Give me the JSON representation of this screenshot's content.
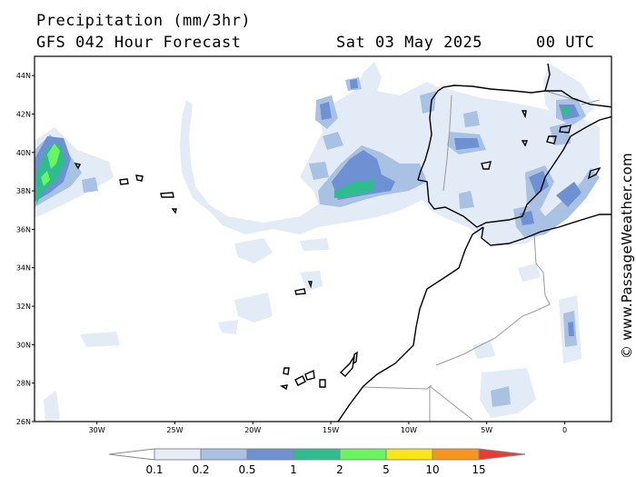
{
  "header": {
    "title": "Precipitation (mm/3hr)",
    "model": "GFS 042 Hour Forecast",
    "date": "Sat 03 May 2025",
    "time": "00 UTC"
  },
  "axes": {
    "lat_labels": [
      "44N",
      "42N",
      "40N",
      "38N",
      "36N",
      "34N",
      "32N",
      "30N",
      "28N",
      "26N"
    ],
    "lat_values": [
      44,
      42,
      40,
      38,
      36,
      34,
      32,
      30,
      28,
      26
    ],
    "lon_labels": [
      "30W",
      "25W",
      "20W",
      "15W",
      "10W",
      "5W",
      "0"
    ],
    "lon_values": [
      -30,
      -25,
      -20,
      -15,
      -10,
      -5,
      0
    ],
    "lat_range": [
      26,
      45
    ],
    "lon_range": [
      -34,
      3
    ]
  },
  "legend": {
    "labels": [
      "0.1",
      "0.2",
      "0.5",
      "1",
      "2",
      "5",
      "10",
      "15"
    ],
    "colors": [
      "#e6edf7",
      "#a9c1e3",
      "#6d91d2",
      "#2fbd8f",
      "#6af560",
      "#f9e61a",
      "#f7941d",
      "#ea3a35"
    ]
  },
  "credit": "© www.PassageWeather.com"
}
